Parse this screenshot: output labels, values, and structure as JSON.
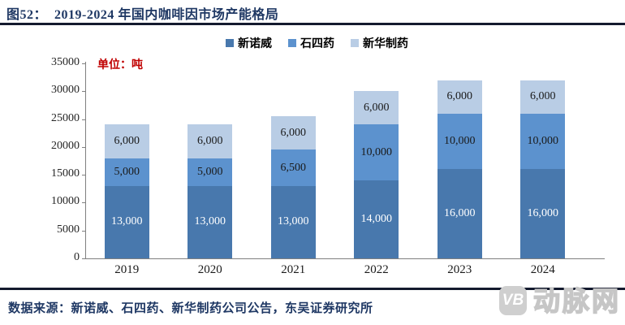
{
  "header": {
    "title": "图52：  2019-2024 年国内咖啡因市场产能格局"
  },
  "unit_label": "单位：吨",
  "chart_data": {
    "type": "bar",
    "stacked": true,
    "title": "2019-2024 年国内咖啡因市场产能格局",
    "unit": "吨",
    "categories": [
      "2019",
      "2020",
      "2021",
      "2022",
      "2023",
      "2024"
    ],
    "series": [
      {
        "name": "新诺威",
        "color": "#4878AD",
        "label_color": "#FFFFFF",
        "values": [
          13000,
          13000,
          13000,
          14000,
          16000,
          16000
        ]
      },
      {
        "name": "石四药",
        "color": "#5C92CE",
        "label_color": "#1A1A1A",
        "values": [
          5000,
          5000,
          6500,
          10000,
          10000,
          10000
        ]
      },
      {
        "name": "新华制药",
        "color": "#B9CDE5",
        "label_color": "#1A1A1A",
        "values": [
          6000,
          6000,
          6000,
          6000,
          6000,
          6000
        ]
      }
    ],
    "totals": [
      24000,
      24000,
      25500,
      30000,
      32000,
      32000
    ],
    "ylim": [
      0,
      35000
    ],
    "yticks": [
      0,
      5000,
      10000,
      15000,
      20000,
      25000,
      30000,
      35000
    ],
    "grid": false,
    "legend_position": "top"
  },
  "footer": {
    "source": "数据来源：新诺威、石四药、新华制药公司公告，东吴证券研究所"
  },
  "watermark": {
    "badge": "VB",
    "name": "动脉网"
  },
  "colors": {
    "title": "#1F3864",
    "divider": "#141A2E",
    "unit_label": "#C00000",
    "axis": "#808080",
    "source_text": "#1F3864",
    "watermark_gray": "#CFCFCF"
  }
}
